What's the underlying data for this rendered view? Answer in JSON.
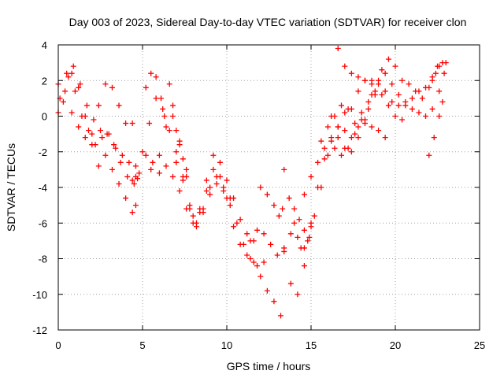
{
  "chart_data": {
    "type": "scatter",
    "title": "Day 003 of 2023, Sidereal Day-to-day VTEC variation (SDTVAR) for receiver clon",
    "xlabel": "GPS time / hours",
    "ylabel": "SDTVAR / TECUs",
    "xlim": [
      0,
      25
    ],
    "ylim": [
      -12,
      4
    ],
    "xticks": [
      "0",
      "5",
      "10",
      "15",
      "20",
      "25"
    ],
    "yticks": [
      "4",
      "2",
      "0",
      "-2",
      "-4",
      "-6",
      "-8",
      "-10",
      "-12"
    ],
    "grid": true,
    "marker": "plus",
    "color": "#ff0000",
    "series": [
      {
        "x": [
          0,
          0.4,
          0.8,
          1.2,
          1.6,
          2,
          2.4,
          2.8,
          3.2,
          3.6,
          4,
          4.4,
          4.6
        ],
        "y": [
          0.2,
          1.4,
          2.4,
          1.6,
          0,
          -1.6,
          -2.8,
          -2.2,
          -3,
          -3.8,
          -4.6,
          -3.6,
          -2.8
        ]
      },
      {
        "x": [
          0,
          0.5,
          0.9,
          1.3,
          1.7,
          2.1,
          2.5,
          2.9,
          3.3,
          3.7,
          4.1,
          4.5,
          4.7
        ],
        "y": [
          1.8,
          2.4,
          2.8,
          1.8,
          0.6,
          -0.2,
          -0.8,
          -1,
          -1.6,
          -2.6,
          -3.4,
          -3.8,
          -3.5
        ]
      },
      {
        "x": [
          0.1,
          0.6,
          1,
          1.4,
          1.8,
          2.2,
          2.6,
          3,
          3.4,
          3.8,
          4.2,
          4.6
        ],
        "y": [
          1,
          2.2,
          1.4,
          0,
          -0.8,
          -1.6,
          -1.2,
          -1,
          -1.8,
          -2.2,
          -2.6,
          -3.4
        ]
      },
      {
        "x": [
          0.3,
          0.8,
          1.2,
          1.6,
          2,
          2.4,
          2.8,
          3.2,
          3.6,
          4,
          4.4
        ],
        "y": [
          0.8,
          0.2,
          -0.6,
          -1.2,
          -1,
          0.6,
          1.8,
          1.6,
          0.6,
          -0.4,
          -0.4
        ]
      },
      {
        "x": [
          4.4,
          4.6,
          4.8,
          5.2,
          5.6,
          6,
          6.4,
          6.8,
          7.2,
          7.6,
          8,
          8.4,
          8.8,
          9.2,
          9.6,
          10,
          10.4,
          10.8,
          11.2,
          11.6,
          12,
          12.4,
          12.8,
          13.2
        ],
        "y": [
          -5.4,
          -5,
          -3.2,
          -2.2,
          -2.6,
          -3.2,
          -2.8,
          -3.4,
          -4.2,
          -5.2,
          -6,
          -5.2,
          -4.2,
          -3,
          -3.4,
          -4.6,
          -6.2,
          -7.2,
          -7.8,
          -8.2,
          -9,
          -9.8,
          -10.4,
          -11.2
        ]
      },
      {
        "x": [
          5,
          5.4,
          5.8,
          6.2,
          6.6,
          7,
          7.4,
          7.8,
          8.2,
          8.6,
          9,
          9.4,
          9.8,
          10.2,
          10.6,
          11,
          11.4,
          11.8,
          12.2
        ],
        "y": [
          -2,
          -0.4,
          1,
          0.4,
          -0.8,
          -2.6,
          -3.4,
          -5,
          -6.2,
          -5.2,
          -4,
          -3.4,
          -4.2,
          -5,
          -6,
          -7.2,
          -8,
          -8.4,
          -8.2
        ]
      },
      {
        "x": [
          5.2,
          5.5,
          5.8,
          6.1,
          6.3
        ],
        "y": [
          1.6,
          2.4,
          2.2,
          1,
          0
        ]
      },
      {
        "x": [
          5.5,
          6,
          6.4,
          6.8,
          7.2,
          7.6,
          8,
          8.4,
          8.8,
          9.2,
          9.6,
          10,
          10.4,
          10.8,
          11.2,
          11.6
        ],
        "y": [
          -3,
          -2.2,
          -0.6,
          0,
          -1.4,
          -3.4,
          -5.6,
          -5.4,
          -3.6,
          -2.2,
          -2.6,
          -3.6,
          -4.6,
          -5.8,
          -6.6,
          -7
        ]
      },
      {
        "x": [
          6.6,
          6.8,
          7,
          7.2,
          7.4,
          7.6
        ],
        "y": [
          1.8,
          0.6,
          -0.8,
          -1.6,
          -2.4,
          -3
        ]
      },
      {
        "x": [
          7,
          7.4,
          7.8,
          8.2,
          8.6,
          9,
          9.4,
          9.8,
          10.2
        ],
        "y": [
          -2,
          -3.6,
          -5.2,
          -6,
          -5.4,
          -4.4,
          -3.8,
          -4,
          -4.6
        ]
      },
      {
        "x": [
          12,
          12.4,
          12.8,
          13.1,
          13.3
        ],
        "y": [
          -4,
          -4.4,
          -5,
          -5.6,
          -5.2
        ]
      },
      {
        "x": [
          11.4,
          11.8,
          12.2,
          12.6,
          13,
          13.4,
          13.8,
          14.2,
          14.6,
          15
        ],
        "y": [
          -7,
          -6.4,
          -6.6,
          -7.2,
          -7.8,
          -7.4,
          -6.6,
          -6.8,
          -7.4,
          -6.2
        ]
      },
      {
        "x": [
          13.4,
          13.7,
          14,
          14.3,
          14.6,
          14.9
        ],
        "y": [
          -3,
          -4.6,
          -5.2,
          -5.8,
          -6.4,
          -6.8
        ]
      },
      {
        "x": [
          13.4,
          13.8,
          14.2,
          14.6,
          15,
          15.4,
          15.8,
          16.2,
          16.6,
          17,
          17.4,
          17.8,
          18.2,
          18.6,
          19,
          19.4
        ],
        "y": [
          -7.6,
          -9.4,
          -10,
          -8.4,
          -6,
          -4,
          -2.4,
          -1.4,
          -1.2,
          -0.8,
          -1.2,
          -0.6,
          -0.2,
          -0.6,
          -0.8,
          -1.2
        ]
      },
      {
        "x": [
          14,
          14.4,
          14.8,
          15.2,
          15.6,
          16,
          16.4,
          16.8,
          17.2,
          17.6,
          18,
          18.4,
          18.8,
          19.2,
          19.6,
          20,
          20.4
        ],
        "y": [
          -6,
          -7.4,
          -7,
          -5.6,
          -4,
          -2.2,
          -1.8,
          -2.2,
          -1.8,
          -1,
          0.2,
          0.8,
          1.4,
          1.2,
          0.6,
          0,
          -0.2
        ]
      },
      {
        "x": [
          14.6,
          15,
          15.4,
          15.8,
          16.2,
          16.6,
          17,
          17.4,
          17.8,
          18.2,
          18.6,
          19,
          19.4,
          19.8,
          20.2,
          20.6,
          21,
          21.4,
          21.8,
          22.2,
          22.6,
          23
        ],
        "y": [
          -4.4,
          -3.4,
          -2.6,
          -1.8,
          -1.2,
          -0.6,
          0.2,
          0.4,
          1.4,
          2,
          2,
          1.8,
          1.4,
          0.8,
          0.6,
          0.6,
          1,
          1.4,
          1.6,
          2.2,
          2.8,
          3
        ]
      },
      {
        "x": [
          15.6,
          16,
          16.4,
          16.8,
          17.2,
          17.6,
          18,
          18.4,
          18.8,
          19.2,
          19.6,
          20,
          20.4,
          20.8,
          21.2,
          21.6,
          22,
          22.4
        ],
        "y": [
          -1.4,
          -0.6,
          0,
          0.6,
          0.4,
          -0.4,
          -0.2,
          0.4,
          1.2,
          2.6,
          3.2,
          2.8,
          2,
          1.8,
          1.4,
          1,
          1.6,
          2.4
        ]
      },
      {
        "x": [
          16.2,
          16.6,
          17,
          17.4,
          17.8,
          18.2,
          18.6,
          19
        ],
        "y": [
          0,
          -0.6,
          -1.8,
          -2,
          -1.2,
          -0.4,
          1.2,
          2
        ]
      },
      {
        "x": [
          16.6,
          17,
          17.4,
          17.8,
          18.2,
          18.6
        ],
        "y": [
          3.8,
          2.8,
          2.4,
          2.2,
          2,
          1.8
        ]
      },
      {
        "x": [
          19.4,
          19.8,
          20.2,
          20.6,
          21,
          21.4,
          21.8,
          22.2,
          22.6,
          22.9
        ],
        "y": [
          2.4,
          1.8,
          1.2,
          0.8,
          0.4,
          0.2,
          0,
          0.4,
          1.4,
          2.4
        ]
      },
      {
        "x": [
          22,
          22.3,
          22.6,
          22.8
        ],
        "y": [
          -2.2,
          -1.2,
          0,
          0.8
        ]
      },
      {
        "x": [
          22.2,
          22.5,
          22.8
        ],
        "y": [
          2,
          2.8,
          3
        ]
      }
    ]
  }
}
